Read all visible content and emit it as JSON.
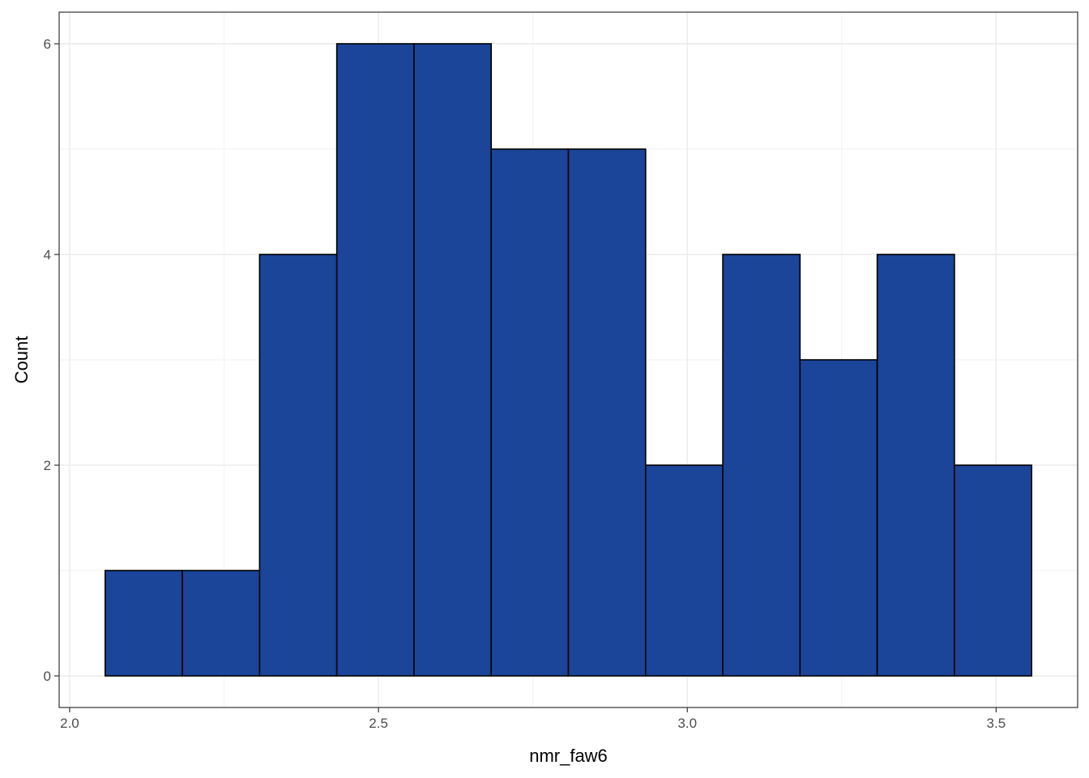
{
  "chart_data": {
    "type": "bar",
    "subtype": "histogram",
    "title": "",
    "xlabel": "nmr_faw6",
    "ylabel": "Count",
    "bins": [
      {
        "x0": 2.0575,
        "x1": 2.1825,
        "count": 1
      },
      {
        "x0": 2.1825,
        "x1": 2.3075,
        "count": 1
      },
      {
        "x0": 2.3075,
        "x1": 2.4325,
        "count": 4
      },
      {
        "x0": 2.4325,
        "x1": 2.5575,
        "count": 6
      },
      {
        "x0": 2.5575,
        "x1": 2.6825,
        "count": 6
      },
      {
        "x0": 2.6825,
        "x1": 2.8075,
        "count": 5
      },
      {
        "x0": 2.8075,
        "x1": 2.9325,
        "count": 5
      },
      {
        "x0": 2.9325,
        "x1": 3.0575,
        "count": 2
      },
      {
        "x0": 3.0575,
        "x1": 3.1825,
        "count": 4
      },
      {
        "x0": 3.1825,
        "x1": 3.3075,
        "count": 3
      },
      {
        "x0": 3.3075,
        "x1": 3.4325,
        "count": 4
      },
      {
        "x0": 3.4325,
        "x1": 3.5575,
        "count": 2
      }
    ],
    "x_ticks": [
      "2.0",
      "2.5",
      "3.0",
      "3.5"
    ],
    "y_ticks": [
      "0",
      "2",
      "4",
      "6"
    ],
    "xlim": [
      1.983,
      3.632
    ],
    "ylim": [
      -0.3,
      6.3
    ],
    "grid": true,
    "fill_color": "#1a4599",
    "edge_color": "#000000",
    "legend": "none"
  }
}
